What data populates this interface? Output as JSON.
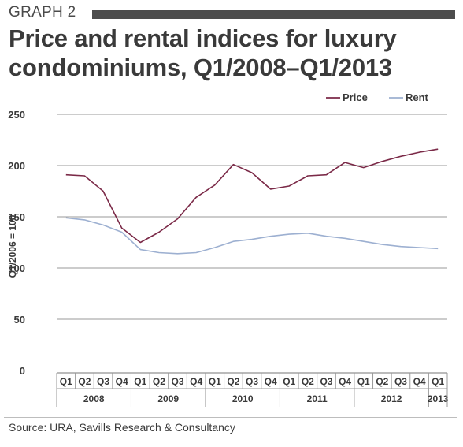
{
  "header": {
    "graph_label": "GRAPH 2",
    "title_line1": "Price and rental indices for luxury",
    "title_line2": "condominiums, Q1/2008–Q1/2013"
  },
  "source": "Source: URA, Savills Research & Consultancy",
  "colors": {
    "price": "#7b2a48",
    "rent": "#9db0d1",
    "grid": "#9a9a9a",
    "text": "#3a3a3a"
  },
  "chart_data": {
    "type": "line",
    "title": "Price and rental indices for luxury condominiums, Q1/2008–Q1/2013",
    "xlabel": "",
    "ylabel": "Q1/2006 = 100",
    "ylim": [
      0,
      250
    ],
    "yticks": [
      0,
      50,
      100,
      150,
      200,
      250
    ],
    "grid": true,
    "legend_position": "top-right",
    "categories": [
      "Q1",
      "Q2",
      "Q3",
      "Q4",
      "Q1",
      "Q2",
      "Q3",
      "Q4",
      "Q1",
      "Q2",
      "Q3",
      "Q4",
      "Q1",
      "Q2",
      "Q3",
      "Q4",
      "Q1",
      "Q2",
      "Q3",
      "Q4",
      "Q1"
    ],
    "years": [
      {
        "label": "2008",
        "start": 0,
        "count": 4
      },
      {
        "label": "2009",
        "start": 4,
        "count": 4
      },
      {
        "label": "2010",
        "start": 8,
        "count": 4
      },
      {
        "label": "2011",
        "start": 12,
        "count": 4
      },
      {
        "label": "2012",
        "start": 16,
        "count": 4
      },
      {
        "label": "2013",
        "start": 20,
        "count": 1
      }
    ],
    "series": [
      {
        "name": "Price",
        "values": [
          191,
          190,
          175,
          139,
          125,
          135,
          148,
          169,
          181,
          201,
          193,
          177,
          180,
          190,
          191,
          203,
          198,
          204,
          209,
          213,
          216
        ]
      },
      {
        "name": "Rent",
        "values": [
          149,
          147,
          142,
          135,
          118,
          115,
          114,
          115,
          120,
          126,
          128,
          131,
          133,
          134,
          131,
          129,
          126,
          123,
          121,
          120,
          119
        ]
      }
    ]
  }
}
